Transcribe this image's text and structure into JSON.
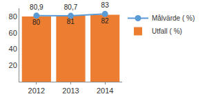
{
  "chart_data": {
    "type": "bar",
    "categories": [
      "2012",
      "2013",
      "2014"
    ],
    "series": [
      {
        "name": "Målvärde ( %)",
        "type": "line",
        "color": "#5b9bd5",
        "marker": "circle",
        "values": [
          80.9,
          80.7,
          83
        ],
        "value_labels": [
          "80,9",
          "80,7",
          "83"
        ]
      },
      {
        "name": "Utfall ( %)",
        "type": "bar",
        "color": "#ed7d31",
        "values": [
          80,
          81,
          82
        ]
      }
    ],
    "ylim": [
      0,
      90
    ],
    "yticks": [
      20,
      40,
      60,
      80
    ],
    "grid": false,
    "legend": "right",
    "data_labels": true
  }
}
